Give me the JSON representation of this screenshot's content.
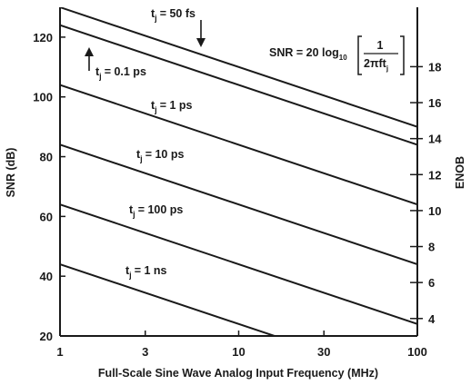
{
  "chart_data": {
    "type": "line",
    "xscale": "log",
    "xlabel": "Full-Scale Sine Wave Analog Input Frequency (MHz)",
    "ylabel": "SNR (dB)",
    "y2label": "ENOB",
    "xlim": [
      1,
      100
    ],
    "ylim": [
      20,
      130
    ],
    "xticks": [
      "1",
      "3",
      "10",
      "30",
      "100"
    ],
    "yticks": [
      "20",
      "40",
      "60",
      "80",
      "100",
      "120"
    ],
    "y2ticks": [
      "4",
      "6",
      "8",
      "10",
      "12",
      "14",
      "16",
      "18"
    ],
    "formula": {
      "lhs": "SNR = 20 log",
      "sub": "10",
      "num": "1",
      "den": "2πft",
      "den_sub": "j"
    },
    "series": [
      {
        "name": "t",
        "sub": "j",
        "eq": "= 50 fs",
        "x": [
          1,
          100
        ],
        "y": [
          130.0,
          90.0
        ]
      },
      {
        "name": "t",
        "sub": "j",
        "eq": "= 0.1 ps",
        "x": [
          1,
          100
        ],
        "y": [
          124.0,
          84.0
        ]
      },
      {
        "name": "t",
        "sub": "j",
        "eq": "= 1 ps",
        "x": [
          1,
          100
        ],
        "y": [
          104.0,
          64.0
        ]
      },
      {
        "name": "t",
        "sub": "j",
        "eq": "= 10 ps",
        "x": [
          1,
          100
        ],
        "y": [
          84.0,
          44.0
        ]
      },
      {
        "name": "t",
        "sub": "j",
        "eq": "= 100 ps",
        "x": [
          1,
          100
        ],
        "y": [
          64.0,
          24.0
        ]
      },
      {
        "name": "t",
        "sub": "j",
        "eq": "= 1 ns",
        "x": [
          1,
          20
        ],
        "y": [
          44.0,
          18.0
        ]
      }
    ],
    "grid": false,
    "legend": "inline labels",
    "color": "#1a1a1a"
  }
}
